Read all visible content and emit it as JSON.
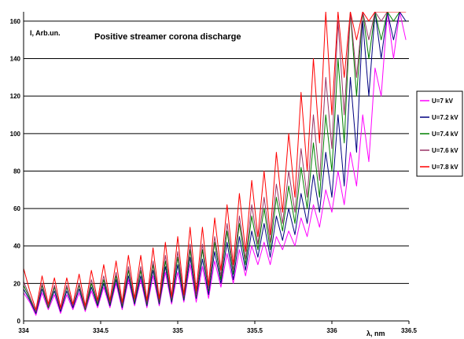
{
  "chart_data": {
    "type": "line",
    "title": "Positive streamer corona discharge",
    "xlabel": "λ, nm",
    "ylabel": "I, Arb.un.",
    "xlim": [
      334,
      336.5
    ],
    "ylim": [
      0,
      165
    ],
    "x_ticks": [
      334,
      334.5,
      335,
      335.5,
      336,
      336.5
    ],
    "x_tick_labels": [
      "334",
      "334.5",
      "335",
      "335.5",
      "336",
      "336.5"
    ],
    "y_ticks": [
      0,
      20,
      40,
      60,
      80,
      100,
      120,
      140,
      160
    ],
    "y_tick_labels": [
      "0",
      "20",
      "40",
      "60",
      "80",
      "100",
      "120",
      "140",
      "160"
    ],
    "grid": "horizontal",
    "legend_position": "right",
    "x": [
      334.0,
      334.04,
      334.08,
      334.12,
      334.16,
      334.2,
      334.24,
      334.28,
      334.32,
      334.36,
      334.4,
      334.44,
      334.48,
      334.52,
      334.56,
      334.6,
      334.64,
      334.68,
      334.72,
      334.76,
      334.8,
      334.84,
      334.88,
      334.92,
      334.96,
      335.0,
      335.04,
      335.08,
      335.12,
      335.16,
      335.2,
      335.24,
      335.28,
      335.32,
      335.36,
      335.4,
      335.44,
      335.48,
      335.52,
      335.56,
      335.6,
      335.64,
      335.68,
      335.72,
      335.76,
      335.8,
      335.84,
      335.88,
      335.92,
      335.96,
      336.0,
      336.04,
      336.08,
      336.12,
      336.16,
      336.2,
      336.24,
      336.28,
      336.32,
      336.36,
      336.4,
      336.44,
      336.48
    ],
    "series": [
      {
        "name": "U=7 kV",
        "color": "#ff00ff",
        "values": [
          15,
          10,
          3,
          15,
          6,
          14,
          4,
          14,
          6,
          15,
          5,
          16,
          7,
          18,
          7,
          20,
          6,
          22,
          8,
          22,
          7,
          24,
          8,
          26,
          9,
          26,
          10,
          30,
          10,
          29,
          12,
          32,
          18,
          36,
          20,
          38,
          24,
          40,
          30,
          42,
          30,
          45,
          38,
          48,
          40,
          55,
          45,
          62,
          50,
          70,
          58,
          80,
          62,
          90,
          72,
          110,
          85,
          135,
          120,
          165,
          140,
          165,
          150
        ]
      },
      {
        "name": "U=7.2 kV",
        "color": "#000080",
        "values": [
          17,
          11,
          4,
          17,
          7,
          16,
          5,
          16,
          7,
          17,
          6,
          18,
          8,
          20,
          8,
          22,
          7,
          24,
          9,
          24,
          8,
          27,
          9,
          29,
          10,
          30,
          11,
          34,
          12,
          33,
          14,
          37,
          20,
          42,
          22,
          45,
          27,
          48,
          34,
          52,
          34,
          56,
          43,
          60,
          46,
          68,
          52,
          78,
          58,
          90,
          66,
          110,
          72,
          130,
          90,
          160,
          120,
          165,
          140,
          165,
          150,
          165,
          160
        ]
      },
      {
        "name": "U=7.4 kV",
        "color": "#008000",
        "values": [
          19,
          12,
          5,
          19,
          7,
          18,
          6,
          18,
          8,
          19,
          6,
          20,
          9,
          22,
          9,
          24,
          8,
          27,
          10,
          27,
          9,
          30,
          10,
          32,
          11,
          34,
          12,
          38,
          13,
          38,
          16,
          42,
          22,
          48,
          25,
          52,
          30,
          56,
          38,
          60,
          38,
          66,
          48,
          72,
          52,
          82,
          60,
          95,
          66,
          110,
          80,
          140,
          95,
          165,
          120,
          165,
          140,
          165,
          150,
          165,
          160,
          165,
          165
        ]
      },
      {
        "name": "U=7.6 kV",
        "color": "#993366",
        "values": [
          21,
          13,
          5,
          20,
          8,
          19,
          6,
          19,
          8,
          20,
          7,
          22,
          10,
          24,
          10,
          26,
          9,
          29,
          11,
          29,
          10,
          32,
          11,
          35,
          12,
          37,
          13,
          41,
          14,
          41,
          17,
          45,
          24,
          52,
          27,
          56,
          33,
          62,
          41,
          66,
          42,
          73,
          52,
          80,
          58,
          92,
          66,
          110,
          75,
          130,
          92,
          160,
          110,
          165,
          130,
          165,
          150,
          165,
          160,
          165,
          165,
          165,
          165
        ]
      },
      {
        "name": "U=7.8 kV",
        "color": "#ff0000",
        "values": [
          28,
          16,
          6,
          24,
          9,
          23,
          7,
          23,
          9,
          25,
          8,
          27,
          11,
          30,
          11,
          32,
          10,
          35,
          12,
          35,
          11,
          39,
          12,
          42,
          13,
          45,
          14,
          50,
          16,
          50,
          19,
          55,
          27,
          62,
          30,
          68,
          37,
          75,
          45,
          80,
          46,
          90,
          58,
          100,
          66,
          122,
          80,
          140,
          95,
          165,
          110,
          165,
          130,
          165,
          150,
          165,
          160,
          165,
          165,
          165,
          165,
          165,
          165
        ]
      }
    ]
  }
}
